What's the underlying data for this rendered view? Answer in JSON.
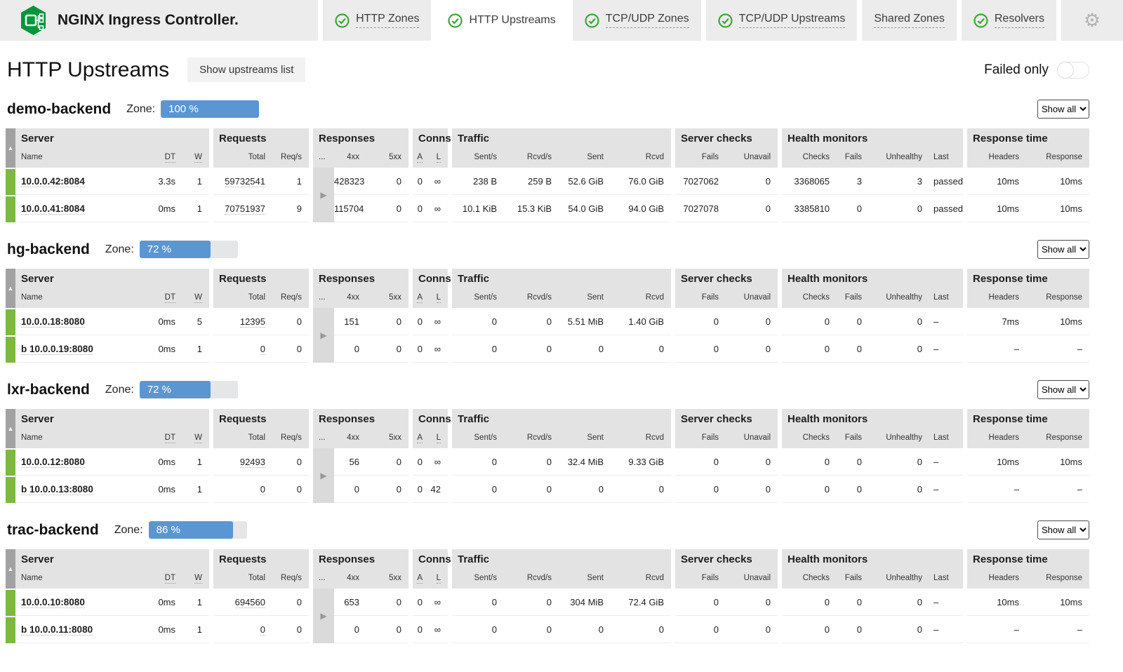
{
  "header": {
    "brand": "NGINX Ingress Controller.",
    "tabs": [
      {
        "label": "HTTP Zones",
        "checked": true,
        "active": false
      },
      {
        "label": "HTTP Upstreams",
        "checked": true,
        "active": true
      },
      {
        "label": "TCP/UDP Zones",
        "checked": true,
        "active": false
      },
      {
        "label": "TCP/UDP Upstreams",
        "checked": true,
        "active": false
      },
      {
        "label": "Shared Zones",
        "checked": false,
        "active": false
      },
      {
        "label": "Resolvers",
        "checked": true,
        "active": false
      }
    ]
  },
  "icons": {
    "gear": "⚙",
    "sort_asc": "▲",
    "expand": "▶"
  },
  "page": {
    "title": "HTTP Upstreams",
    "show_list_button": "Show upstreams list",
    "failed_only_label": "Failed only",
    "failed_only_state": "off"
  },
  "labels": {
    "zone": "Zone:",
    "show_all": "Show all"
  },
  "cols": {
    "g_server": "Server",
    "g_requests": "Requests",
    "g_responses": "Responses",
    "g_conns": "Conns",
    "g_traffic": "Traffic",
    "g_checks": "Server checks",
    "g_monitors": "Health monitors",
    "g_rt": "Response time",
    "name": "Name",
    "dt": "DT",
    "w": "W",
    "total": "Total",
    "reqs": "Req/s",
    "dots": "...",
    "c4xx": "4xx",
    "c5xx": "5xx",
    "a": "A",
    "l": "L",
    "sents": "Sent/s",
    "rcvds": "Rcvd/s",
    "sent": "Sent",
    "rcvd": "Rcvd",
    "fails": "Fails",
    "unavail": "Unavail",
    "checks": "Checks",
    "hm_fails": "Fails",
    "unhealthy": "Unhealthy",
    "last": "Last",
    "headers": "Headers",
    "response": "Response"
  },
  "colors": {
    "brand_green": "#009639",
    "check_green": "#3fa53c",
    "row_green": "#7db843",
    "zone_blue": "#5a96d2",
    "header_gray": "#e3e3e3"
  },
  "upstreams": [
    {
      "name": "demo-backend",
      "zone_pct": "100 %",
      "zone_fill": 100,
      "rows": [
        {
          "name": "10.0.0.42:8084",
          "dt": "3.3s",
          "w": "1",
          "total": "59732541",
          "reqs": "1",
          "c4xx": "428323",
          "c5xx": "0",
          "a": "0",
          "l": "∞",
          "sents": "238 B",
          "rcvds": "259 B",
          "sent": "52.6 GiB",
          "rcvd": "76.0 GiB",
          "sc_fails": "7027062",
          "unavail": "0",
          "checks": "3368065",
          "hm_fails": "3",
          "unhealthy": "3",
          "last": "passed",
          "headers": "10ms",
          "response": "10ms"
        },
        {
          "name": "10.0.0.41:8084",
          "dt": "0ms",
          "w": "1",
          "total": "70751937",
          "reqs": "9",
          "c4xx": "115704",
          "c5xx": "0",
          "a": "0",
          "l": "∞",
          "sents": "10.1 KiB",
          "rcvds": "15.3 KiB",
          "sent": "54.0 GiB",
          "rcvd": "94.0 GiB",
          "sc_fails": "7027078",
          "unavail": "0",
          "checks": "3385810",
          "hm_fails": "0",
          "unhealthy": "0",
          "last": "passed",
          "headers": "10ms",
          "response": "10ms"
        }
      ]
    },
    {
      "name": "hg-backend",
      "zone_pct": "72 %",
      "zone_fill": 72,
      "rows": [
        {
          "name": "10.0.0.18:8080",
          "dt": "0ms",
          "w": "5",
          "total": "12395",
          "reqs": "0",
          "c4xx": "151",
          "c5xx": "0",
          "a": "0",
          "l": "∞",
          "sents": "0",
          "rcvds": "0",
          "sent": "5.51 MiB",
          "rcvd": "1.40 GiB",
          "sc_fails": "0",
          "unavail": "0",
          "checks": "0",
          "hm_fails": "0",
          "unhealthy": "0",
          "last": "–",
          "headers": "7ms",
          "response": "10ms"
        },
        {
          "name": "b 10.0.0.19:8080",
          "dt": "0ms",
          "w": "1",
          "total": "0",
          "reqs": "0",
          "c4xx": "0",
          "c5xx": "0",
          "a": "0",
          "l": "∞",
          "sents": "0",
          "rcvds": "0",
          "sent": "0",
          "rcvd": "0",
          "sc_fails": "0",
          "unavail": "0",
          "checks": "0",
          "hm_fails": "0",
          "unhealthy": "0",
          "last": "–",
          "headers": "–",
          "response": "–"
        }
      ]
    },
    {
      "name": "lxr-backend",
      "zone_pct": "72 %",
      "zone_fill": 72,
      "rows": [
        {
          "name": "10.0.0.12:8080",
          "dt": "0ms",
          "w": "1",
          "total": "92493",
          "reqs": "0",
          "c4xx": "56",
          "c5xx": "0",
          "a": "0",
          "l": "∞",
          "sents": "0",
          "rcvds": "0",
          "sent": "32.4 MiB",
          "rcvd": "9.33 GiB",
          "sc_fails": "0",
          "unavail": "0",
          "checks": "0",
          "hm_fails": "0",
          "unhealthy": "0",
          "last": "–",
          "headers": "10ms",
          "response": "10ms"
        },
        {
          "name": "b 10.0.0.13:8080",
          "dt": "0ms",
          "w": "1",
          "total": "0",
          "reqs": "0",
          "c4xx": "0",
          "c5xx": "0",
          "a": "0",
          "l": "42",
          "sents": "0",
          "rcvds": "0",
          "sent": "0",
          "rcvd": "0",
          "sc_fails": "0",
          "unavail": "0",
          "checks": "0",
          "hm_fails": "0",
          "unhealthy": "0",
          "last": "–",
          "headers": "–",
          "response": "–"
        }
      ]
    },
    {
      "name": "trac-backend",
      "zone_pct": "86 %",
      "zone_fill": 86,
      "rows": [
        {
          "name": "10.0.0.10:8080",
          "dt": "0ms",
          "w": "1",
          "total": "694560",
          "reqs": "0",
          "c4xx": "653",
          "c5xx": "0",
          "a": "0",
          "l": "∞",
          "sents": "0",
          "rcvds": "0",
          "sent": "304 MiB",
          "rcvd": "72.4 GiB",
          "sc_fails": "0",
          "unavail": "0",
          "checks": "0",
          "hm_fails": "0",
          "unhealthy": "0",
          "last": "–",
          "headers": "10ms",
          "response": "10ms"
        },
        {
          "name": "b 10.0.0.11:8080",
          "dt": "0ms",
          "w": "1",
          "total": "0",
          "reqs": "0",
          "c4xx": "0",
          "c5xx": "0",
          "a": "0",
          "l": "∞",
          "sents": "0",
          "rcvds": "0",
          "sent": "0",
          "rcvd": "0",
          "sc_fails": "0",
          "unavail": "0",
          "checks": "0",
          "hm_fails": "0",
          "unhealthy": "0",
          "last": "–",
          "headers": "–",
          "response": "–"
        }
      ]
    }
  ]
}
